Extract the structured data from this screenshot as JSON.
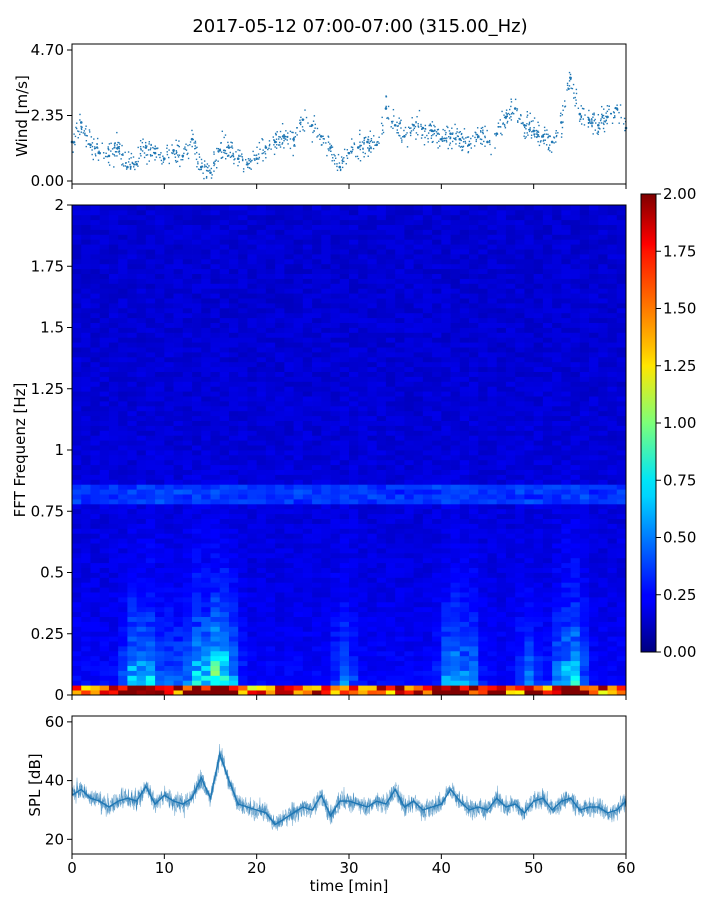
{
  "chart_data": {
    "title": "2017-05-12 07:00-07:00 (315.00_Hz)",
    "panels": [
      {
        "type": "scatter",
        "ylabel": "Wind [m/s]",
        "xlim": [
          0,
          60
        ],
        "ylim": [
          0,
          4.7
        ],
        "yticks": [
          "0.00",
          "2.35",
          "4.70"
        ],
        "color": "#1f77b4",
        "x": [
          0,
          1,
          2,
          3,
          4,
          5,
          6,
          7,
          8,
          9,
          10,
          11,
          12,
          13,
          14,
          15,
          16,
          17,
          18,
          19,
          20,
          21,
          22,
          23,
          24,
          25,
          26,
          27,
          28,
          29,
          30,
          31,
          32,
          33,
          34,
          35,
          36,
          37,
          38,
          39,
          40,
          41,
          42,
          43,
          44,
          45,
          46,
          47,
          48,
          49,
          50,
          51,
          52,
          53,
          54,
          55,
          56,
          57,
          58,
          59,
          60
        ],
        "y": [
          1.4,
          2.1,
          1.3,
          1.0,
          0.9,
          1.2,
          0.5,
          0.6,
          1.2,
          1.0,
          0.8,
          1.1,
          0.9,
          1.5,
          0.5,
          0.3,
          1.1,
          1.2,
          0.8,
          0.6,
          0.8,
          1.2,
          1.4,
          1.6,
          1.5,
          2.2,
          2.0,
          1.6,
          1.2,
          0.5,
          1.0,
          1.2,
          1.4,
          1.3,
          2.6,
          2.0,
          1.6,
          2.0,
          1.9,
          1.8,
          1.5,
          1.7,
          1.5,
          1.3,
          1.6,
          1.4,
          1.7,
          2.3,
          2.6,
          2.0,
          1.8,
          1.6,
          1.4,
          2.1,
          3.7,
          2.4,
          2.2,
          2.0,
          2.3,
          2.6,
          1.9
        ]
      },
      {
        "type": "heatmap",
        "ylabel": "FFT Frequenz [Hz]",
        "xlim": [
          0,
          60
        ],
        "ylim": [
          0,
          2
        ],
        "yticks": [
          "0",
          "0.25",
          "0.5",
          "0.75",
          "1",
          "1.25",
          "1.5",
          "1.75",
          "2"
        ],
        "colormap": "jet",
        "colorbar": {
          "min": 0.0,
          "max": 2.0,
          "ticks": [
            "0.00",
            "0.25",
            "0.50",
            "0.75",
            "1.00",
            "1.25",
            "1.50",
            "1.75",
            "2.00"
          ]
        }
      },
      {
        "type": "line",
        "ylabel": "SPL [dB]",
        "xlabel": "time [min]",
        "xlim": [
          0,
          60
        ],
        "ylim": [
          15,
          62
        ],
        "yticks": [
          "20",
          "40",
          "60"
        ],
        "xticks": [
          "0",
          "10",
          "20",
          "30",
          "40",
          "50",
          "60"
        ],
        "color": "#1f77b4",
        "x": [
          0,
          1,
          2,
          3,
          4,
          5,
          6,
          7,
          8,
          9,
          10,
          11,
          12,
          13,
          14,
          15,
          16,
          17,
          18,
          19,
          20,
          21,
          22,
          23,
          24,
          25,
          26,
          27,
          28,
          29,
          30,
          31,
          32,
          33,
          34,
          35,
          36,
          37,
          38,
          39,
          40,
          41,
          42,
          43,
          44,
          45,
          46,
          47,
          48,
          49,
          50,
          51,
          52,
          53,
          54,
          55,
          56,
          57,
          58,
          59,
          60
        ],
        "y": [
          35,
          37,
          34,
          33,
          31,
          33,
          34,
          33,
          38,
          32,
          35,
          33,
          32,
          34,
          41,
          34,
          49,
          40,
          32,
          31,
          30,
          29,
          25,
          27,
          29,
          31,
          30,
          35,
          28,
          33,
          33,
          32,
          31,
          33,
          32,
          37,
          31,
          33,
          30,
          31,
          32,
          37,
          33,
          30,
          31,
          30,
          34,
          31,
          32,
          29,
          33,
          34,
          30,
          33,
          34,
          30,
          31,
          31,
          29,
          30,
          33
        ]
      }
    ]
  }
}
